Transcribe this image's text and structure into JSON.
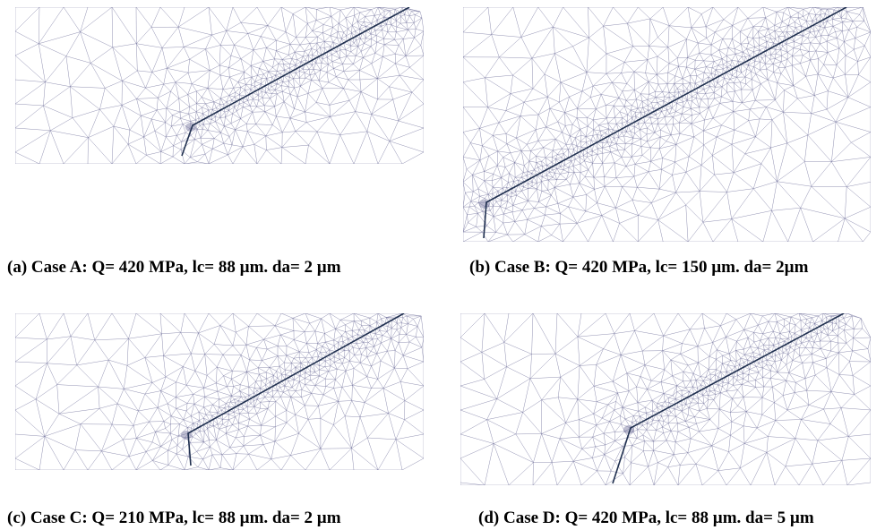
{
  "figure": {
    "panels": [
      {
        "id": "a",
        "caption": "(a) Case A: Q= 420 MPa, lc= 88 µm. da= 2 µm"
      },
      {
        "id": "b",
        "caption": "(b) Case B: Q= 420 MPa, lc= 150 µm. da= 2µm"
      },
      {
        "id": "c",
        "caption": "(c) Case C: Q= 210 MPa, lc= 88 µm. da= 2 µm"
      },
      {
        "id": "d",
        "caption": "(d) Case D: Q= 420 MPa, lc= 88 µm. da= 5 µm"
      }
    ],
    "colors": {
      "mesh": "#6f6f9a",
      "crack": "#1f2f4f",
      "background": "#ffffff"
    }
  }
}
